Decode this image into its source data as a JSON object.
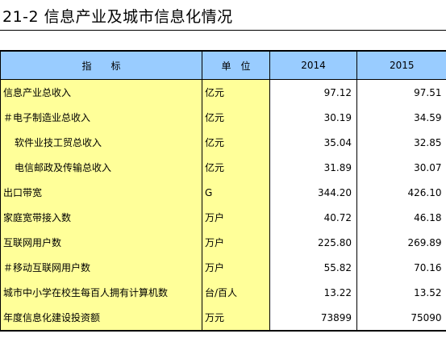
{
  "title": "21-2  信息产业及城市信息化情况",
  "header": {
    "indicator": "指　　标",
    "unit": "单　位",
    "year1": "2014",
    "year2": "2015"
  },
  "rows": [
    {
      "name": "信息产业总收入",
      "unit": "亿元",
      "y2014": "97.12",
      "y2015": "97.51",
      "indent": false
    },
    {
      "name": "＃电子制造业总收入",
      "unit": "亿元",
      "y2014": "30.19",
      "y2015": "34.59",
      "indent": false
    },
    {
      "name": "软件业技工贸总收入",
      "unit": "亿元",
      "y2014": "35.04",
      "y2015": "32.85",
      "indent": true
    },
    {
      "name": "电信邮政及传输总收入",
      "unit": "亿元",
      "y2014": "31.89",
      "y2015": "30.07",
      "indent": true
    },
    {
      "name": "出口带宽",
      "unit": "G",
      "y2014": "344.20",
      "y2015": "426.10",
      "indent": false
    },
    {
      "name": "家庭宽带接入数",
      "unit": "万户",
      "y2014": "40.72",
      "y2015": "46.18",
      "indent": false
    },
    {
      "name": "互联网用户数",
      "unit": "万户",
      "y2014": "225.80",
      "y2015": "269.89",
      "indent": false
    },
    {
      "name": "＃移动互联网用户数",
      "unit": "万户",
      "y2014": "55.82",
      "y2015": "70.16",
      "indent": false
    },
    {
      "name": "城市中小学在校生每百人拥有计算机数",
      "unit": "台/百人",
      "y2014": "13.22",
      "y2015": "13.52",
      "indent": false
    },
    {
      "name": "年度信息化建设投资额",
      "unit": "万元",
      "y2014": "73899",
      "y2015": "75090",
      "indent": false
    }
  ]
}
